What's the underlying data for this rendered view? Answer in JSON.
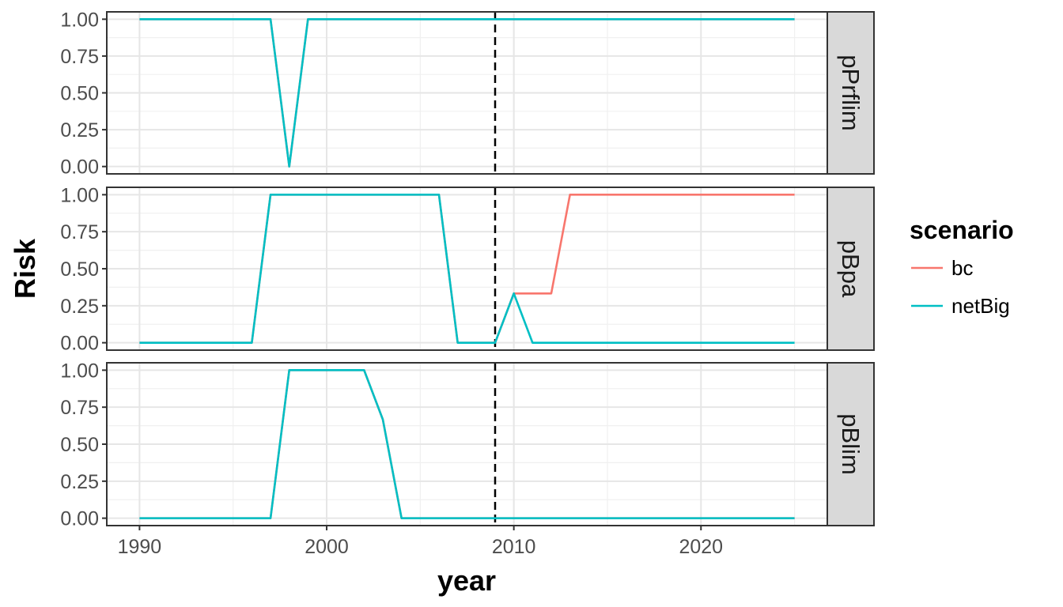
{
  "chart_data": {
    "type": "line",
    "xlabel": "year",
    "ylabel": "Risk",
    "xlim": [
      1988.25,
      2026.75
    ],
    "ylim": [
      -0.05,
      1.05
    ],
    "x_ticks": [
      1990,
      2000,
      2010,
      2020
    ],
    "y_ticks": [
      0.0,
      0.25,
      0.5,
      0.75,
      1.0
    ],
    "y_tick_labels": [
      "0.00",
      "0.25",
      "0.50",
      "0.75",
      "1.00"
    ],
    "vline_x": 2009,
    "vline_style": "dashed",
    "grid": true,
    "legend": {
      "title": "scenario",
      "position": "right",
      "entries": [
        {
          "label": "bc",
          "color": "#F8766D"
        },
        {
          "label": "netBig",
          "color": "#00BFC4"
        }
      ]
    },
    "panels": [
      {
        "strip": "pPrflim",
        "series": [
          {
            "name": "bc",
            "color": "#F8766D",
            "x": [
              1990,
              1997,
              1998,
              1999,
              2009,
              2025
            ],
            "y": [
              1,
              1,
              0,
              1,
              1,
              1
            ]
          },
          {
            "name": "netBig",
            "color": "#00BFC4",
            "x": [
              1990,
              1997,
              1998,
              1999,
              2009,
              2025
            ],
            "y": [
              1,
              1,
              0,
              1,
              1,
              1
            ]
          }
        ]
      },
      {
        "strip": "pBpa",
        "series": [
          {
            "name": "bc",
            "color": "#F8766D",
            "x": [
              1990,
              1996,
              1997,
              2006,
              2007,
              2009,
              2010,
              2012,
              2013,
              2025
            ],
            "y": [
              0,
              0,
              1,
              1,
              0,
              0,
              0.333,
              0.333,
              1,
              1
            ]
          },
          {
            "name": "netBig",
            "color": "#00BFC4",
            "x": [
              1990,
              1996,
              1997,
              2006,
              2007,
              2009,
              2010,
              2011,
              2025
            ],
            "y": [
              0,
              0,
              1,
              1,
              0,
              0,
              0.333,
              0,
              0
            ]
          }
        ]
      },
      {
        "strip": "pBlim",
        "series": [
          {
            "name": "bc",
            "color": "#F8766D",
            "x": [
              1990,
              1997,
              1998,
              2002,
              2003,
              2004,
              2025
            ],
            "y": [
              0,
              0,
              1,
              1,
              0.667,
              0,
              0
            ]
          },
          {
            "name": "netBig",
            "color": "#00BFC4",
            "x": [
              1990,
              1997,
              1998,
              2002,
              2003,
              2004,
              2025
            ],
            "y": [
              0,
              0,
              1,
              1,
              0.667,
              0,
              0
            ]
          }
        ]
      }
    ]
  }
}
